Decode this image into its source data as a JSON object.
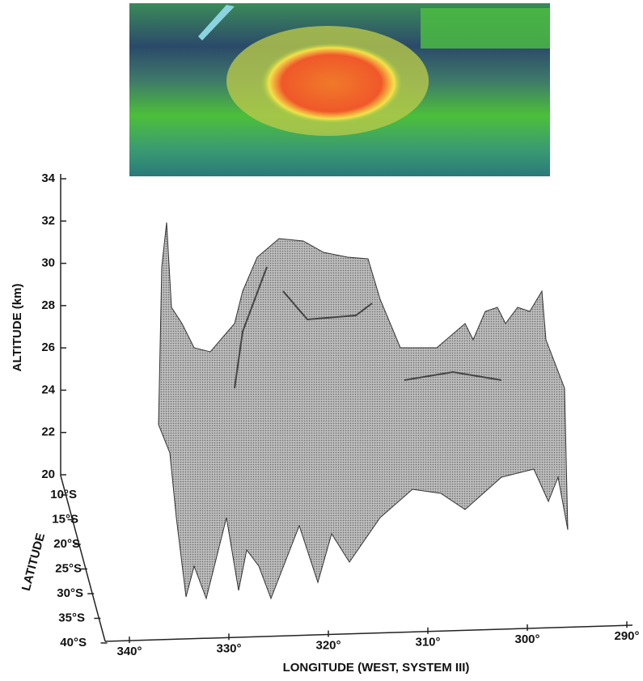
{
  "chart_data": {
    "type": "surface",
    "z_label": "ALTITUDE (km)",
    "y_label": "LATITUDE",
    "x_label": "LONGITUDE (WEST, SYSTEM III)",
    "zlim": [
      20,
      34
    ],
    "zticks": [
      20,
      22,
      24,
      26,
      28,
      30,
      32,
      34
    ],
    "ylim": [
      -10,
      -40
    ],
    "yticks": [
      {
        "value": -10,
        "label": "10°S"
      },
      {
        "value": -15,
        "label": "15°S"
      },
      {
        "value": -20,
        "label": "20°S"
      },
      {
        "value": -25,
        "label": "25°S"
      },
      {
        "value": -30,
        "label": "30°S"
      },
      {
        "value": -35,
        "label": "35°S"
      },
      {
        "value": -40,
        "label": "40°S"
      }
    ],
    "xlim": [
      340,
      290
    ],
    "xticks": [
      {
        "value": 340,
        "label": "340°"
      },
      {
        "value": 330,
        "label": "330°"
      },
      {
        "value": 320,
        "label": "320°"
      },
      {
        "value": 310,
        "label": "310°"
      },
      {
        "value": 300,
        "label": "300°"
      },
      {
        "value": 290,
        "label": "290°"
      }
    ]
  }
}
